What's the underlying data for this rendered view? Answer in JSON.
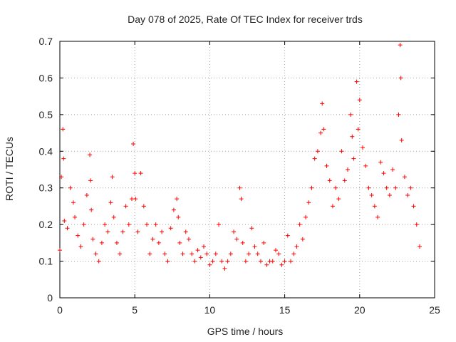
{
  "chart_data": {
    "type": "scatter",
    "title": "Day 078 of 2025, Rate Of TEC Index for receiver trds",
    "xlabel": "GPS time / hours",
    "ylabel": "ROTI / TECUs",
    "xlim": [
      0,
      25
    ],
    "ylim": [
      0,
      0.7
    ],
    "xticks": [
      0,
      5,
      10,
      15,
      20,
      25
    ],
    "yticks": [
      0,
      0.1,
      0.2,
      0.3,
      0.4,
      0.5,
      0.6,
      0.7
    ],
    "grid": true,
    "marker": "+",
    "color": "#ff0000",
    "series": [
      {
        "name": "ROTI",
        "x": [
          0.0,
          0.1,
          0.2,
          0.25,
          0.3,
          0.5,
          0.7,
          0.9,
          1.0,
          1.2,
          1.4,
          1.6,
          1.8,
          2.0,
          2.05,
          2.1,
          2.2,
          2.4,
          2.6,
          2.8,
          3.0,
          3.2,
          3.4,
          3.5,
          3.6,
          3.8,
          4.0,
          4.2,
          4.4,
          4.6,
          4.8,
          4.9,
          5.0,
          5.05,
          5.2,
          5.4,
          5.6,
          5.8,
          6.0,
          6.2,
          6.4,
          6.6,
          6.8,
          7.0,
          7.2,
          7.4,
          7.6,
          7.8,
          7.9,
          8.0,
          8.2,
          8.4,
          8.6,
          8.8,
          9.0,
          9.2,
          9.4,
          9.6,
          9.8,
          10.0,
          10.2,
          10.4,
          10.6,
          10.8,
          11.0,
          11.2,
          11.4,
          11.6,
          11.8,
          12.0,
          12.1,
          12.2,
          12.4,
          12.6,
          12.8,
          13.0,
          13.2,
          13.4,
          13.6,
          13.8,
          14.0,
          14.2,
          14.4,
          14.6,
          14.8,
          15.0,
          15.2,
          15.4,
          15.6,
          15.8,
          16.0,
          16.2,
          16.4,
          16.6,
          16.8,
          17.0,
          17.2,
          17.4,
          17.5,
          17.6,
          17.8,
          18.0,
          18.2,
          18.4,
          18.6,
          18.8,
          19.0,
          19.2,
          19.4,
          19.5,
          19.6,
          19.8,
          19.9,
          20.0,
          20.2,
          20.4,
          20.6,
          20.8,
          21.0,
          21.2,
          21.4,
          21.6,
          21.8,
          22.0,
          22.2,
          22.4,
          22.6,
          22.7,
          22.75,
          22.8,
          23.0,
          23.2,
          23.4,
          23.6,
          23.8,
          24.0
        ],
        "y": [
          0.13,
          0.33,
          0.46,
          0.38,
          0.21,
          0.19,
          0.3,
          0.26,
          0.22,
          0.17,
          0.14,
          0.2,
          0.28,
          0.39,
          0.32,
          0.24,
          0.16,
          0.12,
          0.1,
          0.15,
          0.2,
          0.18,
          0.26,
          0.33,
          0.22,
          0.15,
          0.12,
          0.18,
          0.25,
          0.2,
          0.27,
          0.42,
          0.34,
          0.27,
          0.18,
          0.34,
          0.25,
          0.2,
          0.12,
          0.16,
          0.2,
          0.15,
          0.18,
          0.12,
          0.1,
          0.19,
          0.24,
          0.27,
          0.22,
          0.15,
          0.12,
          0.18,
          0.16,
          0.12,
          0.1,
          0.13,
          0.11,
          0.14,
          0.12,
          0.09,
          0.1,
          0.12,
          0.2,
          0.1,
          0.08,
          0.1,
          0.12,
          0.18,
          0.16,
          0.3,
          0.27,
          0.15,
          0.1,
          0.12,
          0.19,
          0.14,
          0.12,
          0.1,
          0.15,
          0.09,
          0.1,
          0.1,
          0.13,
          0.12,
          0.09,
          0.1,
          0.17,
          0.1,
          0.12,
          0.14,
          0.2,
          0.16,
          0.22,
          0.26,
          0.3,
          0.38,
          0.4,
          0.45,
          0.53,
          0.46,
          0.36,
          0.32,
          0.25,
          0.3,
          0.27,
          0.4,
          0.32,
          0.35,
          0.5,
          0.44,
          0.38,
          0.59,
          0.46,
          0.54,
          0.41,
          0.36,
          0.3,
          0.28,
          0.25,
          0.22,
          0.37,
          0.34,
          0.3,
          0.28,
          0.35,
          0.3,
          0.5,
          0.69,
          0.6,
          0.43,
          0.33,
          0.28,
          0.3,
          0.25,
          0.2,
          0.14
        ]
      }
    ]
  }
}
